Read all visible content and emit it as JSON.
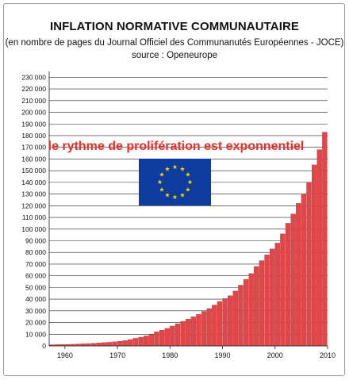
{
  "title": "INFLATION NORMATIVE COMMUNAUTAIRE",
  "subtitle": "(en nombre de pages du Journal Officiel des Communanutés Européennes - JOCE)",
  "source": "source : Openeurope",
  "annotation": "le rythme de prolifération est exponnentiel",
  "flag_icon": "eu-flag-icon",
  "colors": {
    "bar": "#e0474a",
    "bar_edge": "#b02a2a",
    "flag_blue": "#0e3b9e",
    "flag_star": "#f5d20a",
    "annotation": "#e8302a"
  },
  "chart_data": {
    "type": "bar",
    "title": "INFLATION NORMATIVE COMMUNAUTAIRE",
    "subtitle": "(en nombre de pages du Journal Officiel des Communanutés Européennes - JOCE)",
    "xlabel": "",
    "ylabel": "",
    "ylim": [
      0,
      235000
    ],
    "xlim": [
      1957,
      2010
    ],
    "grid": "horizontal",
    "y_ticks": [
      0,
      10000,
      20000,
      30000,
      40000,
      50000,
      60000,
      70000,
      80000,
      90000,
      100000,
      110000,
      120000,
      130000,
      140000,
      150000,
      160000,
      170000,
      180000,
      190000,
      200000,
      210000,
      220000,
      230000
    ],
    "y_tick_labels": [
      "0",
      "10 000",
      "20 000",
      "30 000",
      "40 000",
      "50 000",
      "60 000",
      "70 000",
      "80 000",
      "90 000",
      "100 000",
      "110 000",
      "120 000",
      "130 000",
      "140 000",
      "150 000",
      "160 000",
      "170 000",
      "180 000",
      "190 000",
      "200 000",
      "210 000",
      "220 000",
      "230 000"
    ],
    "x_ticks": [
      1960,
      1970,
      1980,
      1990,
      2000,
      2010
    ],
    "x_tick_labels": [
      "1960",
      "1970",
      "1980",
      "1990",
      "2000",
      "2010"
    ],
    "categories": [
      1958,
      1959,
      1960,
      1961,
      1962,
      1963,
      1964,
      1965,
      1966,
      1967,
      1968,
      1969,
      1970,
      1971,
      1972,
      1973,
      1974,
      1975,
      1976,
      1977,
      1978,
      1979,
      1980,
      1981,
      1982,
      1983,
      1984,
      1985,
      1986,
      1987,
      1988,
      1989,
      1990,
      1991,
      1992,
      1993,
      1994,
      1995,
      1996,
      1997,
      1998,
      1999,
      2000,
      2001,
      2002,
      2003,
      2004,
      2005,
      2006,
      2007,
      2008,
      2009,
      2010
    ],
    "values": [
      1000,
      1100,
      1200,
      1300,
      1400,
      1600,
      1800,
      2000,
      2200,
      2500,
      2800,
      3100,
      3500,
      4000,
      4500,
      5500,
      6500,
      7500,
      8500,
      10000,
      12000,
      13500,
      15000,
      17000,
      19000,
      21000,
      23000,
      25000,
      27000,
      29500,
      32000,
      35000,
      38000,
      40500,
      43000,
      47000,
      52000,
      57000,
      62000,
      68000,
      73000,
      78000,
      83000,
      88000,
      96000,
      105000,
      113000,
      122000,
      130000,
      140000,
      155000,
      168000,
      183000
    ]
  }
}
